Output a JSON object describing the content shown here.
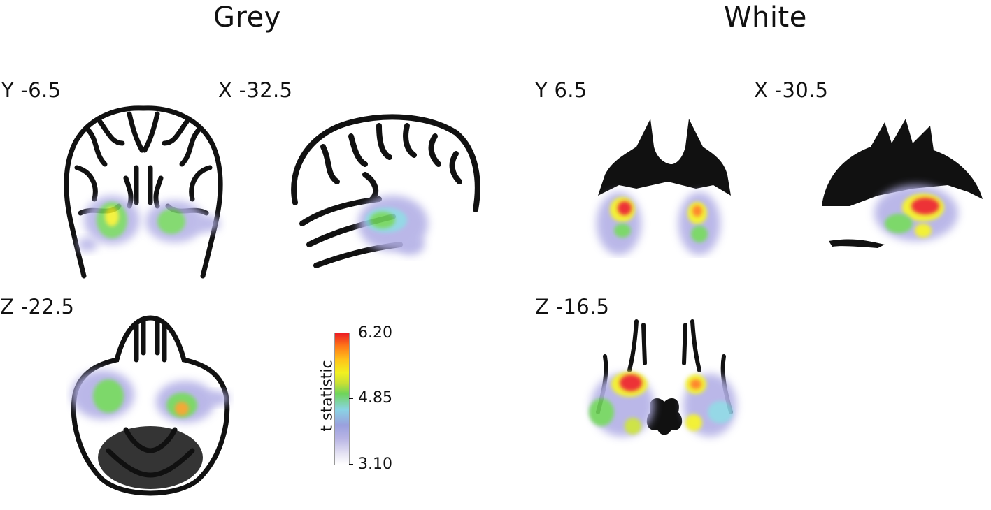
{
  "panels": {
    "grey": {
      "title": "Grey",
      "coronal_label": "Y -6.5",
      "sagittal_label": "X -32.5",
      "axial_label": "Z -22.5"
    },
    "white": {
      "title": "White",
      "coronal_label": "Y 6.5",
      "sagittal_label": "X -30.5",
      "axial_label": "Z -16.5"
    }
  },
  "colorbar": {
    "title": "t statistic",
    "max_label": "6.20",
    "mid_label": "4.85",
    "min_label": "3.10",
    "colors": [
      "#ffffff",
      "#b8b4e4",
      "#8ad4e4",
      "#6fd45a",
      "#f2f020",
      "#ff7a18",
      "#ec1c24"
    ]
  }
}
